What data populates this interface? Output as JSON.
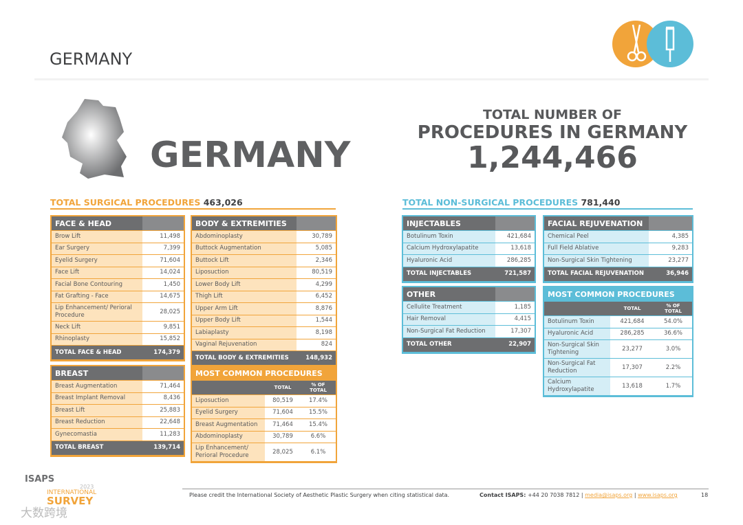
{
  "header": {
    "title": "GERMANY"
  },
  "hero": {
    "country": "GERMANY",
    "total_line1": "TOTAL NUMBER OF",
    "total_line2": "PROCEDURES IN GERMANY",
    "total_value": "1,244,466"
  },
  "surgical": {
    "heading": "TOTAL SURGICAL PROCEDURES",
    "total": "463,026",
    "tables": [
      {
        "title": "FACE & HEAD",
        "rows": [
          [
            "Brow Lift",
            "11,498"
          ],
          [
            "Ear Surgery",
            "7,399"
          ],
          [
            "Eyelid Surgery",
            "71,604"
          ],
          [
            "Face Lift",
            "14,024"
          ],
          [
            "Facial Bone Contouring",
            "1,450"
          ],
          [
            "Fat Grafting - Face",
            "14,675"
          ],
          [
            "Lip Enhancement/ Perioral Procedure",
            "28,025"
          ],
          [
            "Neck Lift",
            "9,851"
          ],
          [
            "Rhinoplasty",
            "15,852"
          ]
        ],
        "total": [
          "TOTAL FACE & HEAD",
          "174,379"
        ]
      },
      {
        "title": "BODY & EXTREMITIES",
        "rows": [
          [
            "Abdominoplasty",
            "30,789"
          ],
          [
            "Buttock Augmentation",
            "5,085"
          ],
          [
            "Buttock Lift",
            "2,346"
          ],
          [
            "Liposuction",
            "80,519"
          ],
          [
            "Lower Body Lift",
            "4,299"
          ],
          [
            "Thigh Lift",
            "6,452"
          ],
          [
            "Upper Arm Lift",
            "8,876"
          ],
          [
            "Upper Body Lift",
            "1,544"
          ],
          [
            "Labiaplasty",
            "8,198"
          ],
          [
            "Vaginal Rejuvenation",
            "824"
          ]
        ],
        "total": [
          "TOTAL BODY & EXTREMITIES",
          "148,932"
        ]
      },
      {
        "title": "BREAST",
        "rows": [
          [
            "Breast Augmentation",
            "71,464"
          ],
          [
            "Breast Implant Removal",
            "8,436"
          ],
          [
            "Breast Lift",
            "25,883"
          ],
          [
            "Breast Reduction",
            "22,648"
          ],
          [
            "Gynecomastia",
            "11,283"
          ]
        ],
        "total": [
          "TOTAL BREAST",
          "139,714"
        ]
      },
      {
        "title": "MOST COMMON PROCEDURES",
        "columns": [
          "TOTAL",
          "% OF TOTAL"
        ],
        "rows": [
          [
            "Liposuction",
            "80,519",
            "17.4%"
          ],
          [
            "Eyelid Surgery",
            "71,604",
            "15.5%"
          ],
          [
            "Breast Augmentation",
            "71,464",
            "15.4%"
          ],
          [
            "Abdominoplasty",
            "30,789",
            "6.6%"
          ],
          [
            "Lip Enhancement/ Perioral Procedure",
            "28,025",
            "6.1%"
          ]
        ]
      }
    ]
  },
  "non_surgical": {
    "heading": "TOTAL NON-SURGICAL PROCEDURES",
    "total": "781,440",
    "tables": [
      {
        "title": "INJECTABLES",
        "rows": [
          [
            "Botulinum Toxin",
            "421,684"
          ],
          [
            "Calcium Hydroxylapatite",
            "13,618"
          ],
          [
            "Hyaluronic Acid",
            "286,285"
          ]
        ],
        "total": [
          "TOTAL INJECTABLES",
          "721,587"
        ]
      },
      {
        "title": "FACIAL REJUVENATION",
        "rows": [
          [
            "Chemical Peel",
            "4,385"
          ],
          [
            "Full Field Ablative",
            "9,283"
          ],
          [
            "Non-Surgical Skin Tightening",
            "23,277"
          ]
        ],
        "total": [
          "TOTAL FACIAL REJUVENATION",
          "36,946"
        ]
      },
      {
        "title": "OTHER",
        "rows": [
          [
            "Cellulite Treatment",
            "1,185"
          ],
          [
            "Hair Removal",
            "4,415"
          ],
          [
            "Non-Surgical Fat Reduction",
            "17,307"
          ]
        ],
        "total": [
          "TOTAL OTHER",
          "22,907"
        ]
      },
      {
        "title": "MOST COMMON PROCEDURES",
        "columns": [
          "TOTAL",
          "% OF TOTAL"
        ],
        "rows": [
          [
            "Botulinum Toxin",
            "421,684",
            "54.0%"
          ],
          [
            "Hyaluronic Acid",
            "286,285",
            "36.6%"
          ],
          [
            "Non-Surgical Skin Tightening",
            "23,277",
            "3.0%"
          ],
          [
            "Non-Surgical Fat Reduction",
            "17,307",
            "2.2%"
          ],
          [
            "Calcium Hydroxylapatite",
            "13,618",
            "1.7%"
          ]
        ]
      }
    ]
  },
  "footer": {
    "logo": "ISAPS",
    "year": "2023",
    "logo_line1": "INTERNATIONAL",
    "logo_line2": "SURVEY",
    "credit": "Please credit the International Society of Aesthetic Plastic Surgery when citing statistical data.",
    "contact_label": "Contact ISAPS:",
    "phone": "+44 20 7038 7812 |",
    "email": "media@isaps.org",
    "separator": "|",
    "website": "www.isaps.org",
    "page": "18",
    "watermark": "大数跨境"
  }
}
